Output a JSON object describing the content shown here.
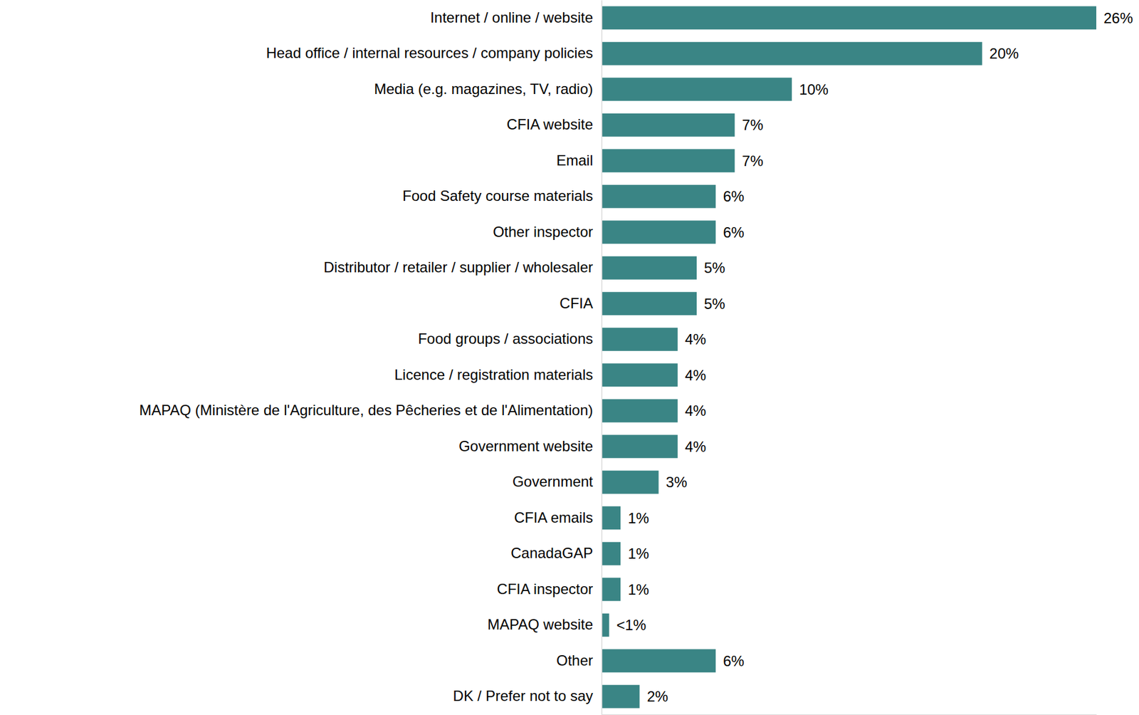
{
  "chart_data": {
    "type": "bar",
    "orientation": "horizontal",
    "categories": [
      "Internet / online / website",
      "Head office / internal resources / company policies",
      "Media (e.g. magazines, TV, radio)",
      "CFIA website",
      "Email",
      "Food Safety course materials",
      "Other inspector",
      "Distributor / retailer / supplier / wholesaler",
      "CFIA",
      "Food groups / associations",
      "Licence / registration materials",
      "MAPAQ (Ministère de l'Agriculture, des Pêcheries et de l'Alimentation)",
      "Government website",
      "Government",
      "CFIA emails",
      "CanadaGAP",
      "CFIA inspector",
      "MAPAQ website",
      "Other",
      "DK / Prefer not to say"
    ],
    "values": [
      26,
      20,
      10,
      7,
      7,
      6,
      6,
      5,
      5,
      4,
      4,
      4,
      4,
      3,
      1,
      1,
      1,
      0.4,
      6,
      2
    ],
    "value_labels": [
      "26%",
      "20%",
      "10%",
      "7%",
      "7%",
      "6%",
      "6%",
      "5%",
      "5%",
      "4%",
      "4%",
      "4%",
      "4%",
      "3%",
      "1%",
      "1%",
      "1%",
      "<1%",
      "6%",
      "2%"
    ],
    "color": "#3a8585",
    "xlim": [
      0,
      26
    ],
    "xticks": [],
    "data_labels": true,
    "tick_labels": "y",
    "grid": false
  }
}
